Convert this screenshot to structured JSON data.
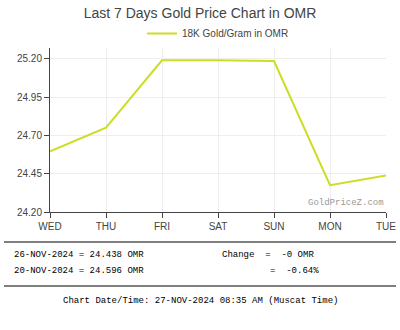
{
  "chart_data": {
    "type": "line",
    "title": "Last 7 Days Gold Price Chart in OMR",
    "categories": [
      "WED",
      "THU",
      "FRI",
      "SAT",
      "SUN",
      "MON",
      "TUE"
    ],
    "series": [
      {
        "name": "18K Gold/Gram in OMR",
        "color": "#ccdd22",
        "values": [
          24.596,
          24.75,
          25.19,
          25.19,
          25.185,
          24.375,
          24.438
        ]
      }
    ],
    "ylim": [
      24.2,
      25.27
    ],
    "yticks": [
      {
        "value": 24.2,
        "label": "24.20"
      },
      {
        "value": 24.45,
        "label": "24.45"
      },
      {
        "value": 24.7,
        "label": "24.70"
      },
      {
        "value": 24.95,
        "label": "24.95"
      },
      {
        "value": 25.2,
        "label": "25.20"
      }
    ],
    "grid": true,
    "legend": "top",
    "annotations": [
      "GoldPriceZ.com",
      "26-NOV-2024 = 24.438 OMR",
      "20-NOV-2024 = 24.596 OMR",
      "Change  =  -0 OMR",
      "=  -0.64%",
      "Chart Date/Time: 27-NOV-2024 08:35 AM (Muscat Time)"
    ]
  }
}
